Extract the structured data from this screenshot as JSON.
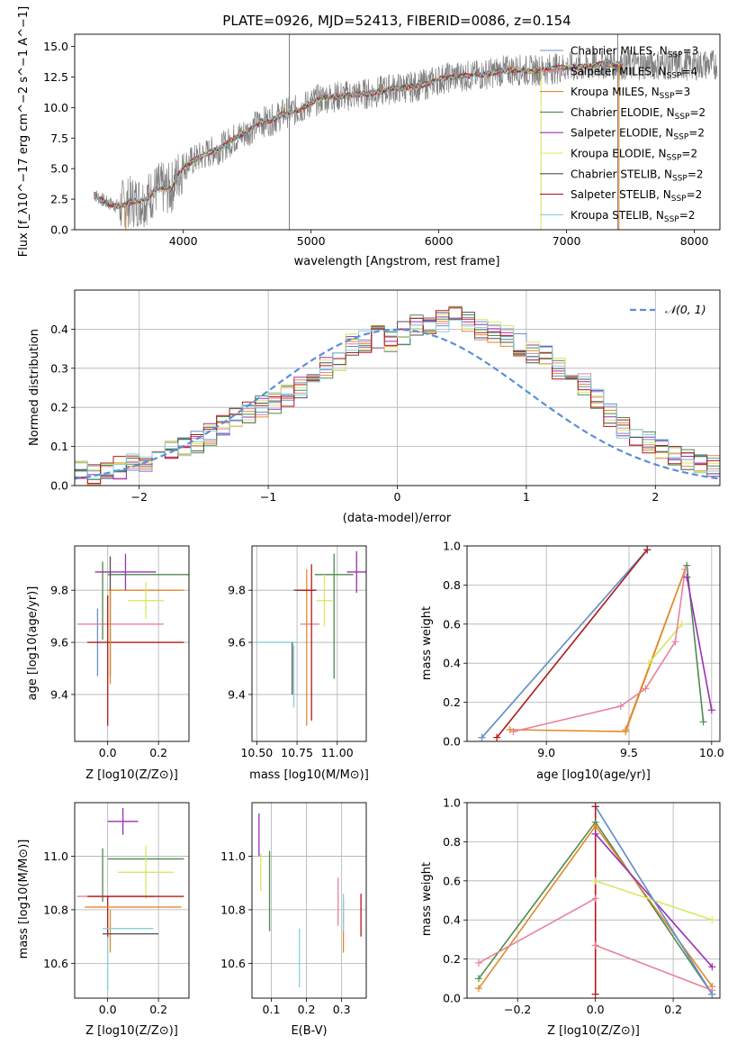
{
  "colors": {
    "Chabrier MILES": "#6a8fc8",
    "Salpeter MILES": "#e8829c",
    "Kroupa MILES": "#e08a2a",
    "Chabrier ELODIE": "#4f8a4f",
    "Salpeter ELODIE": "#9b30b5",
    "Kroupa ELODIE": "#d8e860",
    "Chabrier STELIB": "#505050",
    "Salpeter STELIB": "#b01a1a",
    "Kroupa STELIB": "#85d0d8",
    "data": "#808080",
    "normal": "#5b8fd6"
  },
  "chart_data": [
    {
      "type": "line",
      "title": "PLATE=0926, MJD=52413, FIBERID=0086, z=0.154",
      "xlabel": "wavelength [Angstrom, rest frame]",
      "ylabel": "Flux [f_λ10^−17 erg cm^−2 s^−1 A^−1]",
      "xlim": [
        3150,
        8200
      ],
      "ylim": [
        0,
        16
      ],
      "xticks": [
        "4000",
        "5000",
        "6000",
        "7000",
        "8000"
      ],
      "yticks": [
        "0.0",
        "2.5",
        "5.0",
        "7.5",
        "10.0",
        "12.5",
        "15.0"
      ],
      "legend": "upper-right",
      "legend_entries": [
        {
          "model": "Chabrier MILES",
          "nssp": "3"
        },
        {
          "model": "Salpeter MILES",
          "nssp": "4"
        },
        {
          "model": "Kroupa MILES",
          "nssp": "3"
        },
        {
          "model": "Chabrier ELODIE",
          "nssp": "2"
        },
        {
          "model": "Salpeter ELODIE",
          "nssp": "2"
        },
        {
          "model": "Kroupa ELODIE",
          "nssp": "2"
        },
        {
          "model": "Chabrier STELIB",
          "nssp": "2"
        },
        {
          "model": "Salpeter STELIB",
          "nssp": "2"
        },
        {
          "model": "Kroupa STELIB",
          "nssp": "2"
        }
      ],
      "continuum": {
        "x": [
          3300,
          3400,
          3500,
          3600,
          3700,
          3800,
          3900,
          4000,
          4100,
          4200,
          4300,
          4400,
          4500,
          4600,
          4700,
          4800,
          4900,
          5000,
          5100,
          5200,
          5300,
          5400,
          5500,
          5600,
          5700,
          5800,
          5900,
          6000,
          6100,
          6200,
          6300,
          6400,
          6500,
          6600,
          6700,
          6800,
          6900,
          7000,
          7100,
          7200,
          7300,
          7400,
          7450
        ],
        "y": [
          2.9,
          2.2,
          1.9,
          2.3,
          2.4,
          3.4,
          3.3,
          5.2,
          5.8,
          6.3,
          6.7,
          7.5,
          8.0,
          8.8,
          9.0,
          9.6,
          9.8,
          10.4,
          10.8,
          10.9,
          11.0,
          11.1,
          11.2,
          11.5,
          11.6,
          11.7,
          11.9,
          12.3,
          12.5,
          12.6,
          12.6,
          12.8,
          13.0,
          13.1,
          13.0,
          13.1,
          13.2,
          13.3,
          13.3,
          13.4,
          13.6,
          13.5,
          13.5
        ]
      },
      "spikes": [
        {
          "x": 4830,
          "y": 16
        },
        {
          "x": 7400,
          "y": 16
        }
      ]
    },
    {
      "type": "bar",
      "xlabel": "(data-model)/error",
      "ylabel": "Normed distribution",
      "xlim": [
        -2.5,
        2.5
      ],
      "ylim": [
        0,
        0.5
      ],
      "xticks": [
        "−2",
        "−1",
        "0",
        "1",
        "2"
      ],
      "yticks": [
        "0.0",
        "0.1",
        "0.2",
        "0.3",
        "0.4"
      ],
      "legend": "upper-right",
      "normal_label": "𝒩(0, 1)",
      "bin_width": 0.1,
      "base_profile": [
        0.04,
        0.03,
        0.035,
        0.045,
        0.06,
        0.065,
        0.07,
        0.09,
        0.1,
        0.11,
        0.13,
        0.15,
        0.17,
        0.19,
        0.2,
        0.21,
        0.23,
        0.25,
        0.27,
        0.3,
        0.32,
        0.36,
        0.37,
        0.38,
        0.37,
        0.39,
        0.41,
        0.4,
        0.42,
        0.43,
        0.42,
        0.4,
        0.39,
        0.38,
        0.36,
        0.34,
        0.33,
        0.3,
        0.29,
        0.26,
        0.22,
        0.18,
        0.15,
        0.13,
        0.11,
        0.09,
        0.08,
        0.07,
        0.06,
        0.05
      ]
    },
    {
      "type": "scatter",
      "xlabel": "Z [log10(Z/Z⊙)]",
      "ylabel": "age  [log10(age/yr)]",
      "xlim": [
        -0.13,
        0.32
      ],
      "ylim": [
        9.22,
        9.97
      ],
      "xticks": [
        "0.0",
        "0.2"
      ],
      "yticks": [
        "9.4",
        "9.6",
        "9.8"
      ],
      "errorbars": [
        {
          "series": "Chabrier MILES",
          "x": -0.04,
          "xe": 0.0,
          "y": 9.6,
          "ye": 0.13
        },
        {
          "series": "Salpeter MILES",
          "x": 0.05,
          "xe": 0.17,
          "y": 9.67,
          "ye": 0.0
        },
        {
          "series": "Kroupa MILES",
          "x": 0.15,
          "xe": 0.15,
          "y": 9.8,
          "ye": 0.0
        },
        {
          "series": "Chabrier ELODIE",
          "x": 0.16,
          "xe": 0.16,
          "y": 9.86,
          "ye": 0.0
        },
        {
          "series": "Chabrier ELODIE",
          "x": -0.02,
          "xe": 0.0,
          "y": 9.76,
          "ye": 0.15
        },
        {
          "series": "Salpeter ELODIE",
          "x": 0.07,
          "xe": 0.12,
          "y": 9.87,
          "ye": 0.07
        },
        {
          "series": "Kroupa ELODIE",
          "x": 0.15,
          "xe": 0.07,
          "y": 9.76,
          "ye": 0.07
        },
        {
          "series": "Salpeter STELIB",
          "x": 0.11,
          "xe": 0.19,
          "y": 9.6,
          "ye": 0.0
        },
        {
          "series": "Salpeter STELIB",
          "x": 0.0,
          "xe": 0.0,
          "y": 9.53,
          "ye": 0.25
        },
        {
          "series": "Chabrier STELIB",
          "x": 0.01,
          "xe": 0.0,
          "y": 9.7,
          "ye": 0.23
        },
        {
          "series": "Kroupa STELIB",
          "x": -0.04,
          "xe": 0.0,
          "y": 9.6,
          "ye": 0.0
        },
        {
          "series": "Kroupa MILES",
          "x": 0.01,
          "xe": 0.0,
          "y": 9.62,
          "ye": 0.18
        }
      ]
    },
    {
      "type": "scatter",
      "xlabel": "mass [log10(M/M⊙)]",
      "ylabel": "",
      "xlim": [
        10.47,
        11.18
      ],
      "ylim": [
        9.22,
        9.97
      ],
      "xticks": [
        "10.50",
        "10.75",
        "11.00"
      ],
      "yticks": [
        "9.4",
        "9.6",
        "9.8"
      ],
      "errorbars": [
        {
          "series": "Kroupa STELIB",
          "x": 10.62,
          "xe": 0.13,
          "y": 9.6,
          "ye": 0.0
        },
        {
          "series": "Kroupa STELIB",
          "x": 10.73,
          "xe": 0.0,
          "y": 9.47,
          "ye": 0.12
        },
        {
          "series": "Chabrier STELIB",
          "x": 10.72,
          "xe": 0.0,
          "y": 9.5,
          "ye": 0.1
        },
        {
          "series": "Salpeter MILES",
          "x": 10.83,
          "xe": 0.06,
          "y": 9.67,
          "ye": 0.0
        },
        {
          "series": "Kroupa MILES",
          "x": 10.81,
          "xe": 0.0,
          "y": 9.58,
          "ye": 0.3
        },
        {
          "series": "Salpeter STELIB",
          "x": 10.84,
          "xe": 0.0,
          "y": 9.6,
          "ye": 0.3
        },
        {
          "series": "Chabrier STELIB",
          "x": 10.79,
          "xe": 0.06,
          "y": 9.8,
          "ye": 0.0
        },
        {
          "series": "Salpeter STELIB",
          "x": 10.81,
          "xe": 0.06,
          "y": 9.8,
          "ye": 0.0
        },
        {
          "series": "Chabrier ELODIE",
          "x": 10.98,
          "xe": 0.12,
          "y": 9.86,
          "ye": 0.0
        },
        {
          "series": "Chabrier ELODIE",
          "x": 10.98,
          "xe": 0.0,
          "y": 9.7,
          "ye": 0.24
        },
        {
          "series": "Kroupa ELODIE",
          "x": 10.92,
          "xe": 0.05,
          "y": 9.76,
          "ye": 0.1
        },
        {
          "series": "Salpeter ELODIE",
          "x": 11.12,
          "xe": 0.06,
          "y": 9.87,
          "ye": 0.08
        }
      ]
    },
    {
      "type": "line",
      "xlabel": "age  [log10(age/yr)]",
      "ylabel": "mass weight",
      "xlim": [
        8.52,
        10.05
      ],
      "ylim": [
        0,
        1
      ],
      "xticks": [
        "9.0",
        "9.5",
        "10.0"
      ],
      "yticks": [
        "0.0",
        "0.2",
        "0.4",
        "0.6",
        "0.8",
        "1.0"
      ],
      "series": [
        {
          "name": "Kroupa STELIB",
          "x": [
            8.61,
            9.61
          ],
          "y": [
            0.02,
            0.98
          ]
        },
        {
          "name": "Chabrier MILES",
          "x": [
            8.61,
            9.61
          ],
          "y": [
            0.02,
            0.98
          ]
        },
        {
          "name": "Salpeter STELIB",
          "x": [
            8.7,
            9.61
          ],
          "y": [
            0.02,
            0.98
          ]
        },
        {
          "name": "Chabrier ELODIE",
          "x": [
            9.85,
            9.95
          ],
          "y": [
            0.9,
            0.1
          ]
        },
        {
          "name": "Salpeter ELODIE",
          "x": [
            9.85,
            10.0
          ],
          "y": [
            0.84,
            0.16
          ]
        },
        {
          "name": "Kroupa MILES",
          "x": [
            8.78,
            9.48,
            9.84,
            9.48
          ],
          "y": [
            0.06,
            0.05,
            0.88,
            0.06
          ]
        },
        {
          "name": "Kroupa ELODIE",
          "x": [
            9.62,
            9.82
          ],
          "y": [
            0.4,
            0.6
          ]
        },
        {
          "name": "Salpeter MILES",
          "x": [
            8.8,
            9.45,
            9.6,
            9.78,
            9.84
          ],
          "y": [
            0.05,
            0.18,
            0.27,
            0.51,
            0.88
          ]
        }
      ]
    },
    {
      "type": "scatter",
      "xlabel": "Z [log10(Z/Z⊙)]",
      "ylabel": "mass [log10(M/M⊙)]",
      "xlim": [
        -0.13,
        0.32
      ],
      "ylim": [
        10.47,
        11.2
      ],
      "xticks": [
        "0.0",
        "0.2"
      ],
      "yticks": [
        "10.6",
        "10.8",
        "11.0"
      ],
      "errorbars": [
        {
          "series": "Salpeter ELODIE",
          "x": 0.06,
          "xe": 0.06,
          "y": 11.13,
          "ye": 0.05
        },
        {
          "series": "Chabrier ELODIE",
          "x": 0.15,
          "xe": 0.15,
          "y": 10.99,
          "ye": 0.0
        },
        {
          "series": "Chabrier ELODIE",
          "x": -0.02,
          "xe": 0.0,
          "y": 10.93,
          "ye": 0.1
        },
        {
          "series": "Kroupa ELODIE",
          "x": 0.15,
          "xe": 0.11,
          "y": 10.94,
          "ye": 0.1
        },
        {
          "series": "Salpeter MILES",
          "x": 0.03,
          "xe": 0.15,
          "y": 10.85,
          "ye": 0.0
        },
        {
          "series": "Salpeter STELIB",
          "x": 0.11,
          "xe": 0.19,
          "y": 10.85,
          "ye": 0.0
        },
        {
          "series": "Salpeter STELIB",
          "x": 0.0,
          "xe": 0.0,
          "y": 10.77,
          "ye": 0.08
        },
        {
          "series": "Kroupa MILES",
          "x": 0.1,
          "xe": 0.19,
          "y": 10.81,
          "ye": 0.0
        },
        {
          "series": "Kroupa MILES",
          "x": 0.01,
          "xe": 0.0,
          "y": 10.72,
          "ye": 0.08
        },
        {
          "series": "Kroupa STELIB",
          "x": 0.08,
          "xe": 0.1,
          "y": 10.73,
          "ye": 0.0
        },
        {
          "series": "Chabrier STELIB",
          "x": 0.09,
          "xe": 0.11,
          "y": 10.71,
          "ye": 0.0
        },
        {
          "series": "Kroupa STELIB",
          "x": 0.0,
          "xe": 0.0,
          "y": 10.6,
          "ye": 0.1
        }
      ]
    },
    {
      "type": "scatter",
      "xlabel": "E(B-V)",
      "ylabel": "",
      "xlim": [
        0.045,
        0.37
      ],
      "ylim": [
        10.47,
        11.2
      ],
      "xticks": [
        "0.1",
        "0.2",
        "0.3"
      ],
      "yticks": [
        "10.6",
        "10.8",
        "11.0"
      ],
      "errorbars": [
        {
          "series": "Salpeter ELODIE",
          "x": 0.065,
          "xe": 0.0,
          "y": 11.08,
          "ye": 0.08
        },
        {
          "series": "Kroupa ELODIE",
          "x": 0.07,
          "xe": 0.0,
          "y": 10.94,
          "ye": 0.07
        },
        {
          "series": "Chabrier ELODIE",
          "x": 0.095,
          "xe": 0.0,
          "y": 10.87,
          "ye": 0.15
        },
        {
          "series": "Kroupa STELIB",
          "x": 0.18,
          "xe": 0.0,
          "y": 10.62,
          "ye": 0.11
        },
        {
          "series": "Salpeter MILES",
          "x": 0.29,
          "xe": 0.0,
          "y": 10.83,
          "ye": 0.09
        },
        {
          "series": "Kroupa MILES",
          "x": 0.305,
          "xe": 0.0,
          "y": 10.74,
          "ye": 0.1
        },
        {
          "series": "Kroupa STELIB",
          "x": 0.305,
          "xe": 0.0,
          "y": 10.79,
          "ye": 0.07
        },
        {
          "series": "Salpeter STELIB",
          "x": 0.355,
          "xe": 0.0,
          "y": 10.78,
          "ye": 0.08
        }
      ]
    },
    {
      "type": "line",
      "xlabel": "Z [log10(Z/Z⊙)]",
      "ylabel": "mass weight",
      "xlim": [
        -0.33,
        0.32
      ],
      "ylim": [
        0,
        1
      ],
      "xticks": [
        "−0.2",
        "0.0",
        "0.2"
      ],
      "yticks": [
        "0.0",
        "0.2",
        "0.4",
        "0.6",
        "0.8",
        "1.0"
      ],
      "series": [
        {
          "name": "Chabrier ELODIE",
          "x": [
            -0.3,
            0.0,
            0.3
          ],
          "y": [
            0.1,
            0.9,
            0.02
          ]
        },
        {
          "name": "Kroupa MILES",
          "x": [
            -0.3,
            0.0,
            0.3
          ],
          "y": [
            0.05,
            0.88,
            0.06
          ]
        },
        {
          "name": "Salpeter ELODIE",
          "x": [
            0.0,
            0.3
          ],
          "y": [
            0.84,
            0.16
          ]
        },
        {
          "name": "Kroupa ELODIE",
          "x": [
            0.0,
            0.3
          ],
          "y": [
            0.6,
            0.4
          ]
        },
        {
          "name": "Salpeter MILES",
          "x": [
            -0.3,
            0.0
          ],
          "y": [
            0.18,
            0.51
          ]
        },
        {
          "name": "Salpeter MILES",
          "x": [
            0.0,
            0.3
          ],
          "y": [
            0.27,
            0.04
          ]
        },
        {
          "name": "Kroupa STELIB",
          "x": [
            0.0,
            0.3
          ],
          "y": [
            0.98,
            0.02
          ]
        },
        {
          "name": "Chabrier MILES",
          "x": [
            0.0,
            0.3
          ],
          "y": [
            0.98,
            0.02
          ]
        },
        {
          "name": "Salpeter STELIB",
          "x": [
            0.0,
            0.0
          ],
          "y": [
            0.02,
            0.98
          ]
        }
      ]
    }
  ]
}
